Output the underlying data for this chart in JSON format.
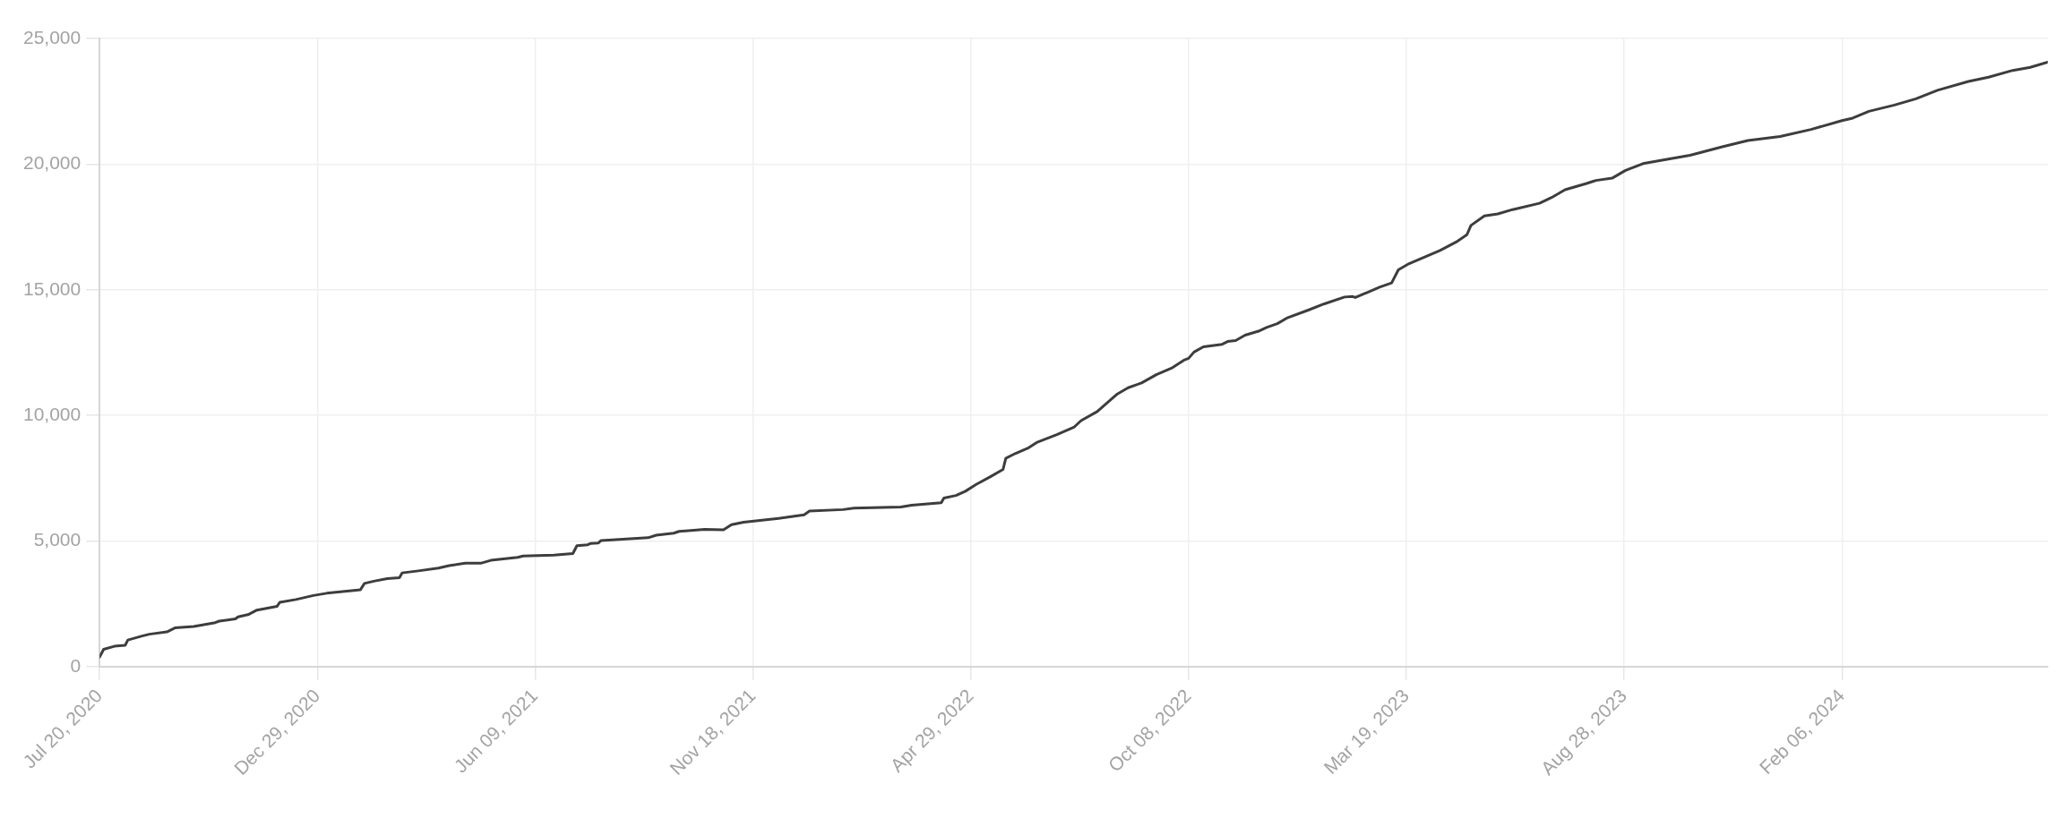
{
  "chart_data": {
    "type": "line",
    "color": "#3d3d3d",
    "marker": "none",
    "line_style": "solid",
    "grid": true,
    "xlim": [
      "2020-07-20",
      "2024-07-08"
    ],
    "ylim": [
      0,
      25000
    ],
    "xticks": [
      {
        "value": "2020-07-20",
        "label": "Jul 20, 2020"
      },
      {
        "value": "2020-12-29",
        "label": "Dec 29, 2020"
      },
      {
        "value": "2021-06-09",
        "label": "Jun 09, 2021"
      },
      {
        "value": "2021-11-18",
        "label": "Nov 18, 2021"
      },
      {
        "value": "2022-04-29",
        "label": "Apr 29, 2022"
      },
      {
        "value": "2022-10-08",
        "label": "Oct 08, 2022"
      },
      {
        "value": "2023-03-19",
        "label": "Mar 19, 2023"
      },
      {
        "value": "2023-08-28",
        "label": "Aug 28, 2023"
      },
      {
        "value": "2024-02-06",
        "label": "Feb 06, 2024"
      }
    ],
    "yticks": [
      {
        "value": 0,
        "label": "0"
      },
      {
        "value": 5000,
        "label": "5,000"
      },
      {
        "value": 10000,
        "label": "10,000"
      },
      {
        "value": 15000,
        "label": "15,000"
      },
      {
        "value": 20000,
        "label": "20,000"
      },
      {
        "value": 25000,
        "label": "25,000"
      }
    ],
    "x": [
      "2020-07-20",
      "2020-07-23",
      "2020-07-31",
      "2020-08-08",
      "2020-08-10",
      "2020-08-20",
      "2020-08-26",
      "2020-09-08",
      "2020-09-14",
      "2020-09-28",
      "2020-10-14",
      "2020-10-17",
      "2020-10-29",
      "2020-10-31",
      "2020-11-08",
      "2020-11-14",
      "2020-11-29",
      "2020-12-01",
      "2020-12-13",
      "2020-12-26",
      "2021-01-05",
      "2021-01-30",
      "2021-02-02",
      "2021-02-09",
      "2021-02-19",
      "2021-02-28",
      "2021-03-02",
      "2021-03-14",
      "2021-03-29",
      "2021-04-06",
      "2021-04-18",
      "2021-04-30",
      "2021-05-07",
      "2021-05-27",
      "2021-05-31",
      "2021-06-23",
      "2021-07-07",
      "2021-07-10",
      "2021-07-18",
      "2021-07-20",
      "2021-07-26",
      "2021-07-28",
      "2021-09-01",
      "2021-09-07",
      "2021-09-20",
      "2021-09-24",
      "2021-10-13",
      "2021-10-27",
      "2021-11-02",
      "2021-11-11",
      "2021-12-07",
      "2021-12-26",
      "2021-12-30",
      "2022-01-24",
      "2022-02-01",
      "2022-03-08",
      "2022-03-16",
      "2022-04-07",
      "2022-04-09",
      "2022-04-18",
      "2022-04-25",
      "2022-05-03",
      "2022-05-13",
      "2022-05-23",
      "2022-05-25",
      "2022-06-01",
      "2022-06-11",
      "2022-06-17",
      "2022-07-02",
      "2022-07-15",
      "2022-07-20",
      "2022-08-01",
      "2022-08-08",
      "2022-08-16",
      "2022-08-24",
      "2022-09-03",
      "2022-09-14",
      "2022-09-26",
      "2022-10-05",
      "2022-10-08",
      "2022-10-12",
      "2022-10-19",
      "2022-11-02",
      "2022-11-06",
      "2022-11-12",
      "2022-11-19",
      "2022-11-29",
      "2022-12-05",
      "2022-12-13",
      "2022-12-20",
      "2023-01-05",
      "2023-01-17",
      "2023-02-01",
      "2023-02-07",
      "2023-02-09",
      "2023-02-27",
      "2023-03-08",
      "2023-03-13",
      "2023-03-21",
      "2023-04-13",
      "2023-04-25",
      "2023-05-03",
      "2023-05-06",
      "2023-05-16",
      "2023-05-26",
      "2023-06-06",
      "2023-06-26",
      "2023-07-05",
      "2023-07-15",
      "2023-07-31",
      "2023-08-07",
      "2023-08-19",
      "2023-08-29",
      "2023-09-11",
      "2023-09-27",
      "2023-10-16",
      "2023-11-09",
      "2023-11-28",
      "2023-12-22",
      "2024-01-14",
      "2024-02-06",
      "2024-02-14",
      "2024-02-26",
      "2024-03-16",
      "2024-04-01",
      "2024-04-17",
      "2024-05-10",
      "2024-05-25",
      "2024-06-12",
      "2024-06-25",
      "2024-07-08"
    ],
    "values": [
      380,
      690,
      810,
      850,
      1060,
      1210,
      1290,
      1380,
      1540,
      1600,
      1750,
      1810,
      1900,
      1980,
      2080,
      2250,
      2400,
      2560,
      2670,
      2830,
      2920,
      3060,
      3310,
      3400,
      3500,
      3540,
      3730,
      3810,
      3920,
      4020,
      4120,
      4120,
      4230,
      4350,
      4400,
      4440,
      4500,
      4810,
      4850,
      4900,
      4920,
      5020,
      5130,
      5230,
      5310,
      5380,
      5460,
      5440,
      5650,
      5750,
      5900,
      6040,
      6190,
      6250,
      6310,
      6350,
      6420,
      6520,
      6710,
      6810,
      6980,
      7250,
      7540,
      7850,
      8290,
      8480,
      8710,
      8920,
      9230,
      9540,
      9790,
      10150,
      10480,
      10850,
      11100,
      11290,
      11620,
      11900,
      12210,
      12270,
      12520,
      12730,
      12830,
      12940,
      12980,
      13190,
      13350,
      13500,
      13650,
      13870,
      14190,
      14440,
      14710,
      14730,
      14690,
      15100,
      15270,
      15790,
      16040,
      16560,
      16900,
      17190,
      17560,
      17940,
      18020,
      18190,
      18440,
      18670,
      18980,
      19230,
      19350,
      19440,
      19750,
      20020,
      20170,
      20350,
      20690,
      20940,
      21100,
      21380,
      21730,
      21830,
      22100,
      22350,
      22600,
      22940,
      23290,
      23460,
      23730,
      23850,
      24060
    ]
  }
}
